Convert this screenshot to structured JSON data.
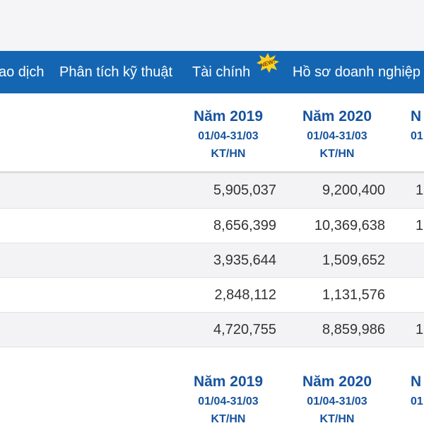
{
  "colors": {
    "nav_bg": "#1566b2",
    "header_text": "#17539e",
    "alt_row": "#f3f3f5"
  },
  "nav": {
    "tabs": [
      {
        "label": "ao dịch"
      },
      {
        "label": "Phân tích kỹ thuật"
      },
      {
        "label": "Tài chính"
      },
      {
        "label": "Hồ sơ doanh nghiệp"
      }
    ],
    "new_badge": "NEW!"
  },
  "table1": {
    "columns": [
      {
        "year": "Năm 2019",
        "period": "01/04-31/03",
        "audit": "KT/HN"
      },
      {
        "year": "Năm 2020",
        "period": "01/04-31/03",
        "audit": "KT/HN"
      },
      {
        "year": "N",
        "period": "01",
        "audit": ""
      }
    ],
    "rows": [
      {
        "v2019": "5,905,037",
        "v2020": "9,200,400",
        "vnext": "1"
      },
      {
        "v2019": "8,656,399",
        "v2020": "10,369,638",
        "vnext": "1"
      },
      {
        "v2019": "3,935,644",
        "v2020": "1,509,652",
        "vnext": ""
      },
      {
        "v2019": "2,848,112",
        "v2020": "1,131,576",
        "vnext": ""
      },
      {
        "v2019": "4,720,755",
        "v2020": "8,859,986",
        "vnext": "1"
      }
    ]
  },
  "table2": {
    "columns": [
      {
        "year": "Năm 2019",
        "period": "01/04-31/03",
        "audit": "KT/HN"
      },
      {
        "year": "Năm 2020",
        "period": "01/04-31/03",
        "audit": "KT/HN"
      },
      {
        "year": "N",
        "period": "01",
        "audit": ""
      }
    ]
  }
}
